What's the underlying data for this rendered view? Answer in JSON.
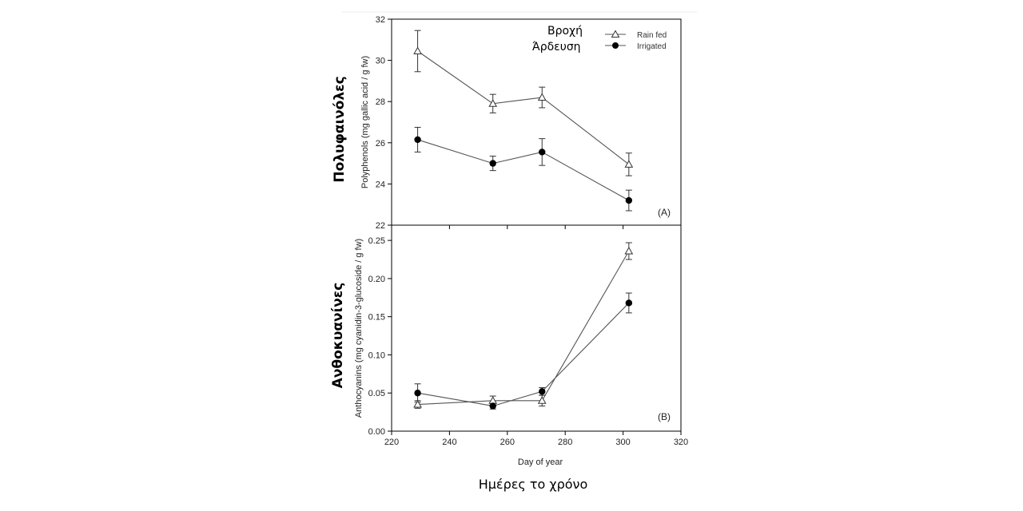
{
  "chart_data": [
    {
      "type": "line",
      "panel_label": "(A)",
      "ylabel": "Polyphenols (mg gallic acid / g fw)",
      "ylabel_greek": "Πολυφαινόλες",
      "ylim": [
        22,
        32
      ],
      "yticks": [
        "22",
        "24",
        "26",
        "28",
        "30",
        "32"
      ],
      "xlim": [
        220,
        320
      ],
      "grid": false,
      "series": [
        {
          "name": "Rain fed",
          "marker": "open-triangle",
          "x": [
            229,
            255,
            272,
            302
          ],
          "y": [
            30.45,
            27.9,
            28.2,
            24.95
          ],
          "err": [
            1.0,
            0.45,
            0.5,
            0.55
          ]
        },
        {
          "name": "Irrigated",
          "marker": "filled-circle",
          "x": [
            229,
            255,
            272,
            302
          ],
          "y": [
            26.15,
            25.0,
            25.55,
            23.2
          ],
          "err": [
            0.6,
            0.35,
            0.65,
            0.5
          ]
        }
      ]
    },
    {
      "type": "line",
      "panel_label": "(B)",
      "ylabel": "Anthocyanins (mg cyanidin-3-glucoside / g fw)",
      "ylabel_greek": "Ανθοκυανίνες",
      "ylim": [
        0,
        0.27
      ],
      "yticks": [
        "0.00",
        "0.05",
        "0.10",
        "0.15",
        "0.20",
        "0.25"
      ],
      "xlim": [
        220,
        320
      ],
      "xticks": [
        "220",
        "240",
        "260",
        "280",
        "300",
        "320"
      ],
      "xlabel": "Day of year",
      "xlabel_greek": "Ημέρες το χρόνο",
      "grid": false,
      "series": [
        {
          "name": "Rain fed",
          "marker": "open-triangle",
          "x": [
            229,
            255,
            272,
            302
          ],
          "y": [
            0.035,
            0.04,
            0.04,
            0.236
          ],
          "err": [
            0.005,
            0.006,
            0.007,
            0.011
          ]
        },
        {
          "name": "Irrigated",
          "marker": "filled-circle",
          "x": [
            229,
            255,
            272,
            302
          ],
          "y": [
            0.05,
            0.033,
            0.052,
            0.168
          ],
          "err": [
            0.012,
            0.004,
            0.005,
            0.013
          ]
        }
      ]
    }
  ],
  "legend": {
    "placement": "top-right",
    "greek_labels": [
      "Βροχή",
      "Άρδευση"
    ],
    "entries": [
      "Rain fed",
      "Irrigated"
    ]
  }
}
